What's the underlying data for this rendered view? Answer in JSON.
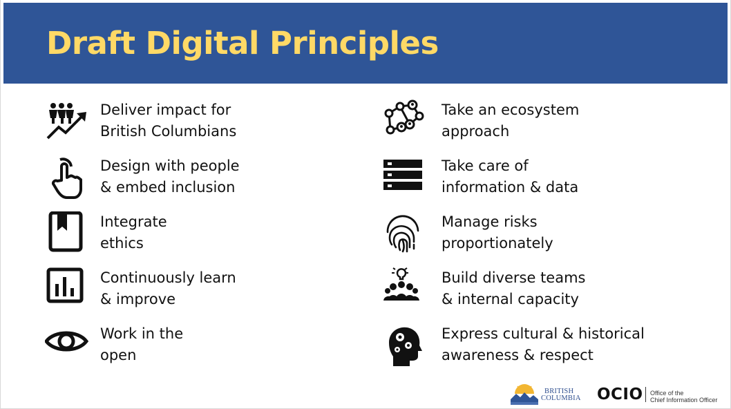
{
  "slide": {
    "title": "Draft Digital Principles",
    "left_column": [
      {
        "icon": "people-growth-icon",
        "line1": "Deliver impact for",
        "line2": "British Columbians"
      },
      {
        "icon": "hand-touch-icon",
        "line1": "Design with people",
        "line2": "& embed inclusion"
      },
      {
        "icon": "book-bookmark-icon",
        "line1": "Integrate",
        "line2": "ethics"
      },
      {
        "icon": "bar-chart-icon",
        "line1": "Continuously learn",
        "line2": "& improve"
      },
      {
        "icon": "eye-icon",
        "line1": "Work in the",
        "line2": "open"
      }
    ],
    "right_column": [
      {
        "icon": "network-icon",
        "line1": "Take an ecosystem",
        "line2": "approach"
      },
      {
        "icon": "server-stack-icon",
        "line1": "Take care of",
        "line2": "information & data"
      },
      {
        "icon": "fingerprint-icon",
        "line1": "Manage risks",
        "line2": "proportionately"
      },
      {
        "icon": "team-idea-icon",
        "line1": "Build diverse teams",
        "line2": "& internal capacity"
      },
      {
        "icon": "head-gears-icon",
        "line1": "Express cultural & historical",
        "line2": "awareness & respect"
      }
    ],
    "footer": {
      "bc_line1": "BRITISH",
      "bc_line2": "COLUMBIA",
      "ocio": "OCIO",
      "ocio_sub1": "Office of the",
      "ocio_sub2": "Chief Information Officer"
    }
  },
  "colors": {
    "banner": "#2f5597",
    "title": "#ffd966",
    "text": "#111111"
  }
}
